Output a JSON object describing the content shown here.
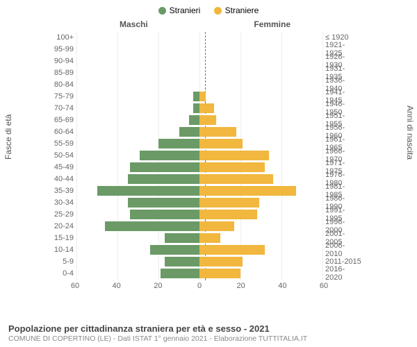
{
  "legend": {
    "male": {
      "label": "Stranieri",
      "color": "#6b9a67"
    },
    "female": {
      "label": "Straniere",
      "color": "#f1b73e"
    }
  },
  "columns": {
    "male": "Maschi",
    "female": "Femmine"
  },
  "vaxis": {
    "left": "Fasce di età",
    "right": "Anni di nascita"
  },
  "xaxis": {
    "max": 60,
    "ticks_left": [
      60,
      40,
      20,
      0
    ],
    "ticks_right": [
      20,
      40,
      60
    ]
  },
  "rows": [
    {
      "age": "100+",
      "birth": "≤ 1920",
      "m": 0,
      "f": 0
    },
    {
      "age": "95-99",
      "birth": "1921-1925",
      "m": 0,
      "f": 0
    },
    {
      "age": "90-94",
      "birth": "1926-1930",
      "m": 0,
      "f": 0
    },
    {
      "age": "85-89",
      "birth": "1931-1935",
      "m": 0,
      "f": 0
    },
    {
      "age": "80-84",
      "birth": "1936-1940",
      "m": 0,
      "f": 0
    },
    {
      "age": "75-79",
      "birth": "1941-1945",
      "m": 3,
      "f": 3
    },
    {
      "age": "70-74",
      "birth": "1946-1950",
      "m": 3,
      "f": 7
    },
    {
      "age": "65-69",
      "birth": "1951-1955",
      "m": 5,
      "f": 8
    },
    {
      "age": "60-64",
      "birth": "1956-1960",
      "m": 10,
      "f": 18
    },
    {
      "age": "55-59",
      "birth": "1961-1965",
      "m": 20,
      "f": 21
    },
    {
      "age": "50-54",
      "birth": "1966-1970",
      "m": 29,
      "f": 34
    },
    {
      "age": "45-49",
      "birth": "1971-1975",
      "m": 34,
      "f": 32
    },
    {
      "age": "40-44",
      "birth": "1976-1980",
      "m": 35,
      "f": 36
    },
    {
      "age": "35-39",
      "birth": "1981-1985",
      "m": 50,
      "f": 47
    },
    {
      "age": "30-34",
      "birth": "1986-1990",
      "m": 35,
      "f": 29
    },
    {
      "age": "25-29",
      "birth": "1991-1995",
      "m": 34,
      "f": 28
    },
    {
      "age": "20-24",
      "birth": "1996-2000",
      "m": 46,
      "f": 17
    },
    {
      "age": "15-19",
      "birth": "2001-2005",
      "m": 17,
      "f": 10
    },
    {
      "age": "10-14",
      "birth": "2006-2010",
      "m": 24,
      "f": 32
    },
    {
      "age": "5-9",
      "birth": "2011-2015",
      "m": 17,
      "f": 21
    },
    {
      "age": "0-4",
      "birth": "2016-2020",
      "m": 19,
      "f": 20
    }
  ],
  "footer": {
    "title": "Popolazione per cittadinanza straniera per età e sesso - 2021",
    "sub": "COMUNE DI COPERTINO (LE) - Dati ISTAT 1° gennaio 2021 - Elaborazione TUTTITALIA.IT"
  },
  "colors": {
    "background": "#ffffff",
    "grid": "#eeeeee",
    "centerline": "#7a7a2a",
    "text_muted": "#666666"
  }
}
